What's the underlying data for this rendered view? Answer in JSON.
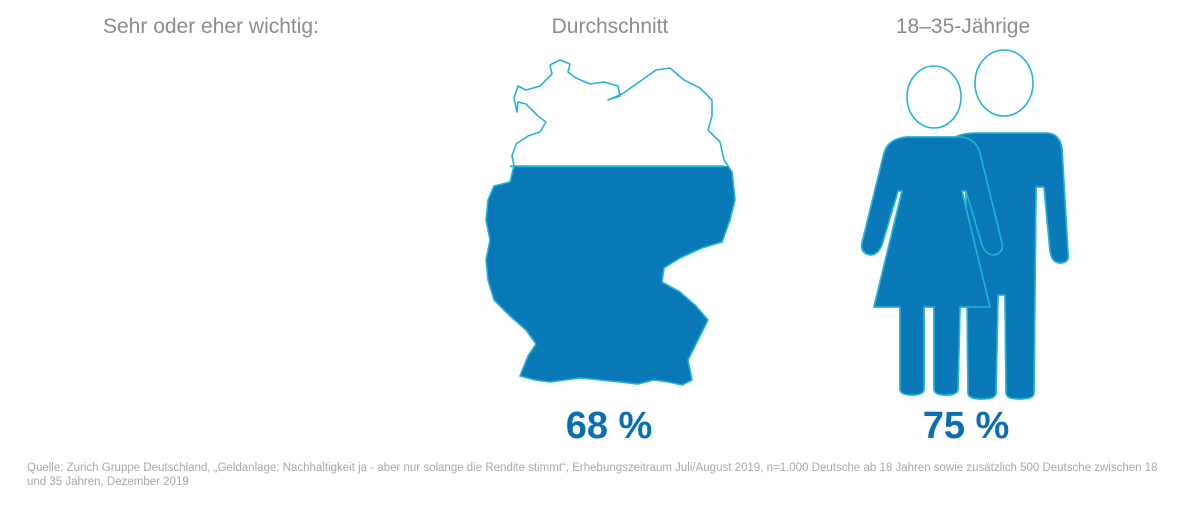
{
  "heading": "Sehr oder eher wichtig:",
  "columns": {
    "average": {
      "title": "Durchschnitt",
      "value_label": "68 %"
    },
    "young": {
      "title": "18–35-Jährige",
      "value_label": "75 %"
    }
  },
  "source": "Quelle: Zurich Gruppe Deutschland, „Geldanlage: Nachhaltigkeit ja - aber nur solange die Rendite stimmt“, Erhebungszeitraum Juli/August 2019, n=1.000 Deutsche ab 18 Jahren sowie zusätzlich 500 Deutsche zwischen 18 und 35 Jahren, Dezember 2019",
  "colors": {
    "fill": "#0a79b7",
    "outline": "#25b3d6",
    "text_gray": "#8c8c8c",
    "value_blue": "#0a6fb0"
  },
  "chart_data": {
    "type": "bar",
    "title": "Sehr oder eher wichtig:",
    "categories": [
      "Durchschnitt",
      "18–35-Jährige"
    ],
    "values": [
      68,
      75
    ],
    "unit": "%",
    "ylim": [
      0,
      100
    ]
  }
}
